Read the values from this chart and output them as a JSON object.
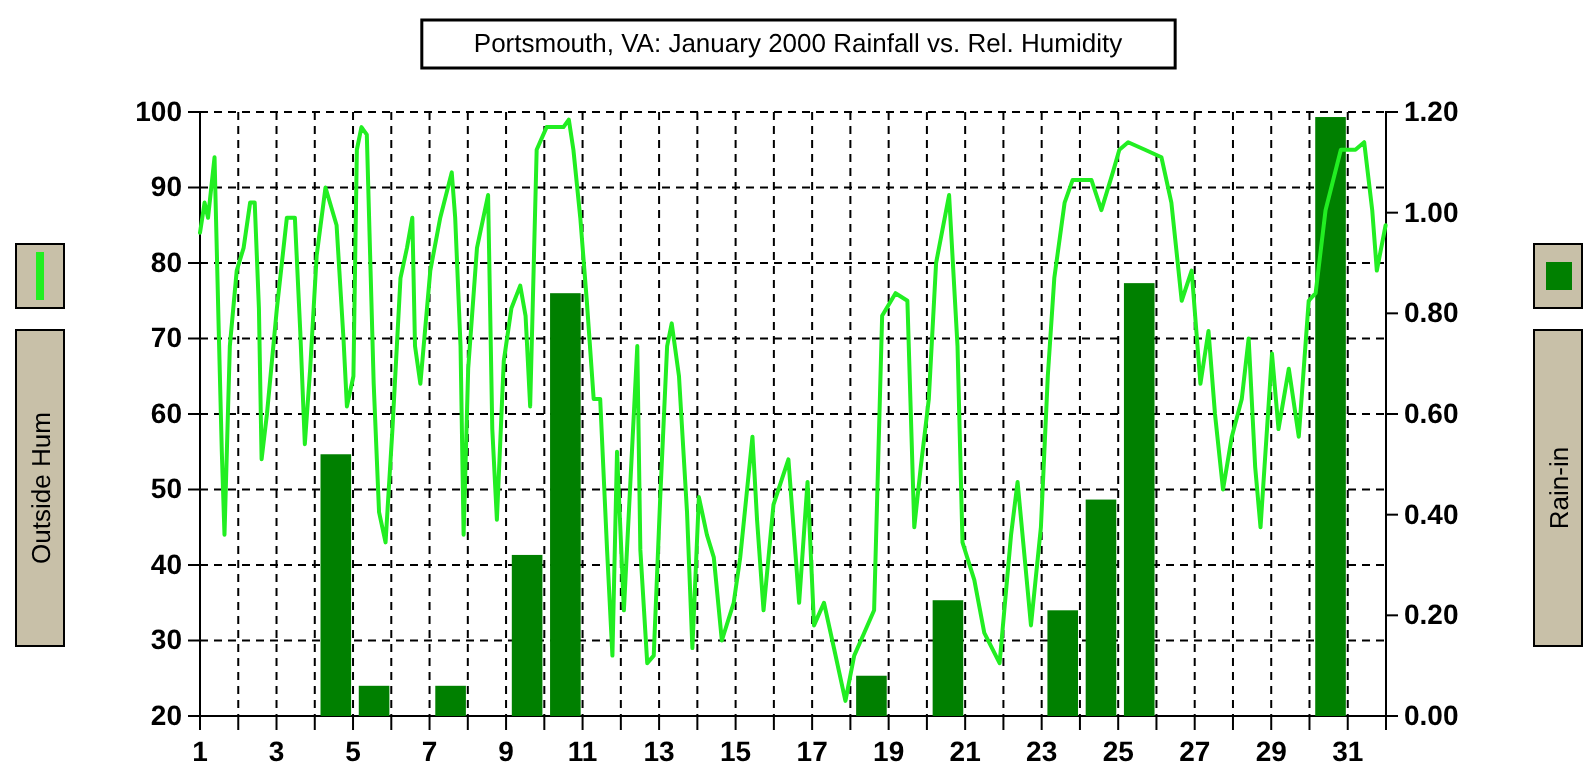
{
  "chart_data": {
    "type": "line",
    "title": "Portsmouth, VA: January 2000 Rainfall vs. Rel. Humidity",
    "ylabel": "Outside Hum",
    "y2label": "Rain-in",
    "xlim": [
      1,
      32
    ],
    "xticks": [
      1,
      {
        "value": 2,
        "label": null
      },
      3,
      {
        "value": 4,
        "label": null
      },
      5,
      {
        "value": 6,
        "label": null
      },
      7,
      {
        "value": 8,
        "label": null
      },
      9,
      {
        "value": 10,
        "label": null
      },
      11,
      {
        "value": 12,
        "label": null
      },
      13,
      {
        "value": 14,
        "label": null
      },
      15,
      {
        "value": 16,
        "label": null
      },
      17,
      {
        "value": 18,
        "label": null
      },
      19,
      {
        "value": 20,
        "label": null
      },
      21,
      {
        "value": 22,
        "label": null
      },
      23,
      {
        "value": 24,
        "label": null
      },
      25,
      {
        "value": 26,
        "label": null
      },
      27,
      {
        "value": 28,
        "label": null
      },
      29,
      {
        "value": 30,
        "label": null
      },
      31,
      {
        "value": 32,
        "label": null
      }
    ],
    "ylim": [
      20,
      100
    ],
    "yticks": [
      20,
      30,
      40,
      50,
      60,
      70,
      80,
      90,
      100
    ],
    "y2lim": [
      0,
      1.2
    ],
    "y2ticks": [
      {
        "value": 0,
        "label": "0.00"
      },
      {
        "value": 0.2,
        "label": "0.20"
      },
      {
        "value": 0.4,
        "label": "0.40"
      },
      {
        "value": 0.6,
        "label": "0.60"
      },
      {
        "value": 0.8,
        "label": "0.80"
      },
      {
        "value": 1,
        "label": "1.00"
      },
      {
        "value": 1.2,
        "label": "1.20"
      }
    ],
    "grid": true,
    "series": [
      {
        "type": "bar",
        "axis": "y2",
        "color": "#008000",
        "x": [
          1.55,
          2.55,
          3.55,
          4.55,
          5.55,
          6.55,
          7.55,
          8.55,
          9.55,
          10.55,
          11.55,
          12.55,
          13.55,
          14.55,
          15.55,
          16.55,
          17.55,
          18.55,
          19.55,
          20.55,
          21.55,
          22.55,
          23.55,
          24.55,
          25.55,
          26.55,
          27.55,
          28.55,
          29.55,
          30.55,
          31.55
        ],
        "values": [
          0,
          0,
          0,
          0.52,
          0.06,
          0,
          0.06,
          0,
          0.32,
          0.84,
          0,
          0,
          0,
          0,
          0,
          0,
          0,
          0.08,
          0,
          0.23,
          0,
          0,
          0.21,
          0.43,
          0.86,
          0,
          0,
          0,
          0,
          1.19,
          0
        ]
      },
      {
        "color": "#22ee22",
        "x": [
          1,
          1.12,
          1.21,
          1.38,
          1.49,
          1.57,
          1.64,
          1.78,
          1.96,
          2.14,
          2.31,
          2.43,
          2.54,
          2.61,
          2.75,
          3.01,
          3.27,
          3.48,
          3.62,
          3.74,
          3.88,
          4.05,
          4.28,
          4.57,
          4.75,
          4.84,
          5.01,
          5.1,
          5.22,
          5.36,
          5.54,
          5.68,
          5.85,
          6.03,
          6.24,
          6.41,
          6.55,
          6.62,
          6.76,
          7.02,
          7.28,
          7.58,
          7.67,
          7.81,
          7.89,
          8.01,
          8.24,
          8.53,
          8.64,
          8.76,
          8.94,
          9.14,
          9.37,
          9.51,
          9.63,
          9.8,
          10.06,
          10.5,
          10.64,
          10.76,
          10.94,
          11.11,
          11.29,
          11.46,
          11.64,
          11.78,
          11.9,
          12.08,
          12.25,
          12.43,
          12.51,
          12.69,
          12.86,
          13.03,
          13.21,
          13.33,
          13.52,
          13.73,
          13.87,
          14.04,
          14.25,
          14.43,
          14.64,
          14.95,
          15.12,
          15.44,
          15.56,
          15.73,
          15.99,
          16.38,
          16.66,
          16.88,
          17.05,
          17.31,
          17.57,
          17.87,
          18.1,
          18.36,
          18.62,
          18.83,
          19.18,
          19.49,
          19.67,
          19.84,
          20.05,
          20.24,
          20.58,
          20.8,
          20.93,
          21.24,
          21.5,
          21.9,
          22.2,
          22.37,
          22.72,
          22.98,
          23.16,
          23.33,
          23.6,
          23.81,
          24.3,
          24.56,
          24.86,
          25.03,
          25.26,
          25.7,
          26.13,
          26.39,
          26.66,
          26.92,
          27.15,
          27.36,
          27.53,
          27.74,
          27.97,
          28.23,
          28.41,
          28.58,
          28.72,
          29.02,
          29.19,
          29.46,
          29.72,
          29.98,
          30.16,
          30.42,
          30.82,
          31.2,
          31.43,
          31.64,
          31.76,
          31.99
        ],
        "values": [
          84,
          88,
          86,
          94,
          71,
          55,
          44,
          69,
          79,
          82,
          88,
          88,
          74,
          54,
          60,
          74,
          86,
          86,
          71,
          56,
          66,
          81,
          90,
          85,
          70,
          61,
          65,
          95,
          98,
          97,
          64,
          47,
          43,
          58,
          78,
          82,
          86,
          69,
          64,
          79,
          86,
          92,
          86,
          69,
          44,
          66,
          82,
          89,
          58,
          46,
          67,
          74,
          77,
          73,
          61,
          95,
          98,
          98,
          99,
          95,
          86,
          75,
          62,
          62,
          42,
          28,
          55,
          34,
          51,
          69,
          42,
          27,
          28,
          49,
          69,
          72,
          65,
          47,
          29,
          49,
          44,
          41,
          30,
          35,
          41,
          57,
          46,
          34,
          48,
          54,
          35,
          51,
          32,
          35,
          29,
          22,
          28,
          31,
          34,
          73,
          76,
          75,
          45,
          53,
          62,
          80,
          89,
          69,
          43,
          38,
          31,
          27,
          44,
          51,
          32,
          45,
          65,
          78,
          88,
          91,
          91,
          87,
          92,
          95,
          96,
          95,
          94,
          88,
          75,
          79,
          64,
          71,
          60,
          50,
          57,
          62,
          70,
          53,
          45,
          68,
          58,
          66,
          57,
          75,
          76,
          87,
          95,
          95,
          96,
          87,
          79,
          85
        ]
      }
    ]
  }
}
